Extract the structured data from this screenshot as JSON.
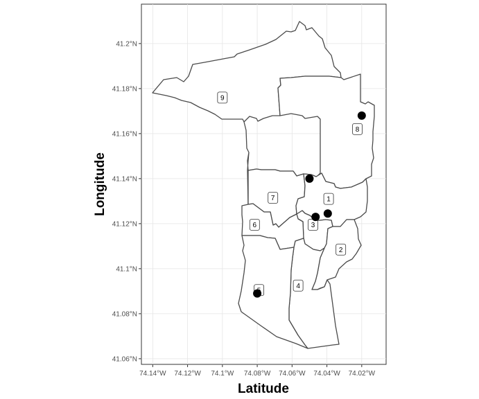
{
  "chart_data": {
    "type": "map",
    "xlabel": "Latitude",
    "ylabel": "Longitude",
    "x_ticks": [
      "74.14°W",
      "74.12°W",
      "74.1°W",
      "74.08°W",
      "74.06°W",
      "74.04°W",
      "74.02°W"
    ],
    "x_tick_values": [
      -74.14,
      -74.12,
      -74.1,
      -74.08,
      -74.06,
      -74.04,
      -74.02
    ],
    "y_ticks": [
      "41.06°N",
      "41.08°N",
      "41.1°N",
      "41.12°N",
      "41.14°N",
      "41.16°N",
      "41.18°N",
      "41.2°N"
    ],
    "y_tick_values": [
      41.06,
      41.08,
      41.1,
      41.12,
      41.14,
      41.16,
      41.18,
      41.2
    ],
    "xlim": [
      -74.1465,
      -74.006
    ],
    "ylim": [
      41.0575,
      41.2175
    ],
    "grid": true,
    "district_labels": [
      {
        "label": "1",
        "lon": -74.039,
        "lat": 41.131
      },
      {
        "label": "2",
        "lon": -74.032,
        "lat": 41.1085
      },
      {
        "label": "3",
        "lon": -74.048,
        "lat": 41.1195
      },
      {
        "label": "4",
        "lon": -74.0565,
        "lat": 41.0925
      },
      {
        "label": "5",
        "lon": -74.079,
        "lat": 41.0905
      },
      {
        "label": "6",
        "lon": -74.0815,
        "lat": 41.1195
      },
      {
        "label": "7",
        "lon": -74.071,
        "lat": 41.1315
      },
      {
        "label": "8",
        "lon": -74.0225,
        "lat": 41.162
      },
      {
        "label": "9",
        "lon": -74.1,
        "lat": 41.176
      }
    ],
    "points": [
      {
        "lon": -74.02,
        "lat": 41.168
      },
      {
        "lon": -74.05,
        "lat": 41.14
      },
      {
        "lon": -74.0395,
        "lat": 41.1245
      },
      {
        "lon": -74.0465,
        "lat": 41.123
      },
      {
        "lon": -74.08,
        "lat": 41.089
      }
    ]
  }
}
